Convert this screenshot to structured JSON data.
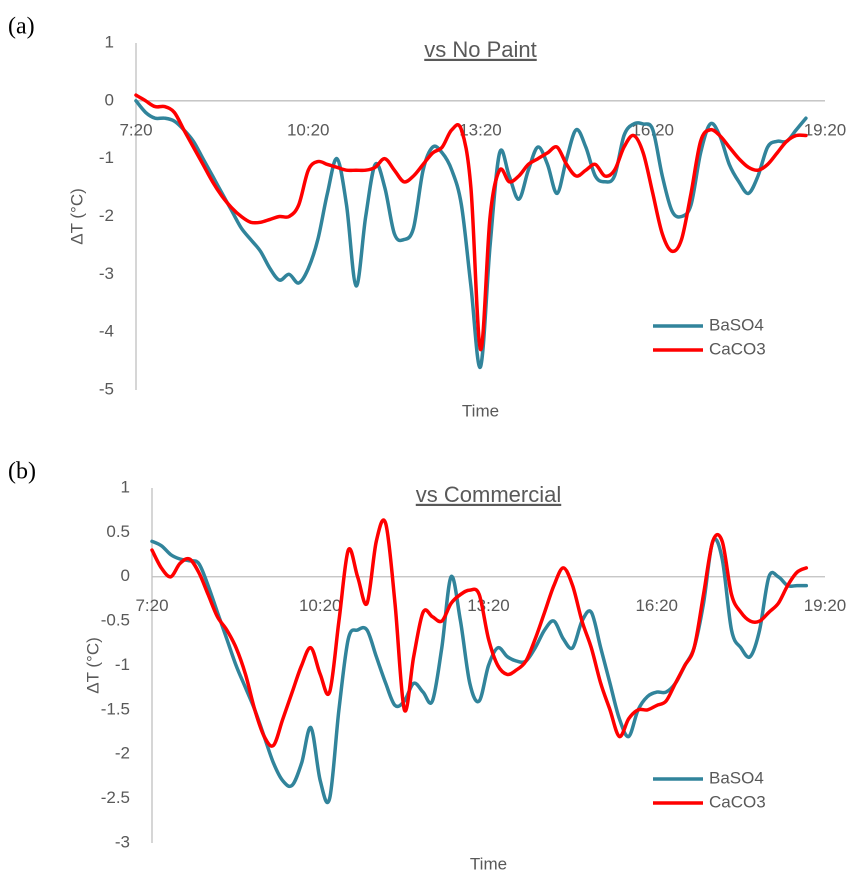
{
  "chart_data": [
    {
      "type": "line",
      "panel_label": "(a)",
      "title": "vs No Paint",
      "xlabel": "Time",
      "ylabel": "ΔT (°C)",
      "smooth": true,
      "legend": "lower right",
      "x": [
        440,
        450,
        460,
        470,
        480,
        490,
        500,
        510,
        520,
        530,
        540,
        550,
        560,
        570,
        580,
        590,
        600,
        610,
        620,
        630,
        640,
        650,
        660,
        670,
        680,
        690,
        700,
        710,
        720,
        730,
        740,
        750,
        760,
        770,
        780,
        790,
        800,
        810,
        820,
        830,
        840,
        850,
        860,
        870,
        880,
        890,
        900,
        910,
        920,
        930,
        940,
        950,
        960,
        970,
        980,
        990,
        1000,
        1010,
        1020,
        1030,
        1040,
        1050,
        1060,
        1070,
        1080,
        1090,
        1100,
        1110,
        1120,
        1130,
        1140
      ],
      "xlim": [
        440,
        1160
      ],
      "xticks": [
        {
          "value": 440,
          "label": "7:20"
        },
        {
          "value": 620,
          "label": "10:20"
        },
        {
          "value": 800,
          "label": "13:20"
        },
        {
          "value": 980,
          "label": "16:20"
        },
        {
          "value": 1160,
          "label": "19:20"
        }
      ],
      "ylim": [
        -5,
        1
      ],
      "yticks": [
        -5,
        -4,
        -3,
        -2,
        -1,
        0,
        1
      ],
      "series": [
        {
          "name": "BaSO4",
          "color": "#31849b",
          "values": [
            0.0,
            -0.2,
            -0.3,
            -0.3,
            -0.35,
            -0.5,
            -0.7,
            -1.0,
            -1.3,
            -1.6,
            -1.9,
            -2.2,
            -2.4,
            -2.6,
            -2.9,
            -3.1,
            -3.0,
            -3.15,
            -2.9,
            -2.4,
            -1.6,
            -1.0,
            -1.8,
            -3.2,
            -2.0,
            -1.1,
            -1.5,
            -2.3,
            -2.4,
            -2.2,
            -1.2,
            -0.8,
            -0.9,
            -1.2,
            -1.8,
            -3.2,
            -4.6,
            -2.5,
            -0.9,
            -1.3,
            -1.7,
            -1.2,
            -0.8,
            -1.1,
            -1.6,
            -1.0,
            -0.5,
            -0.8,
            -1.3,
            -1.4,
            -1.3,
            -0.6,
            -0.4,
            -0.4,
            -0.5,
            -1.3,
            -1.9,
            -2.0,
            -1.8,
            -0.9,
            -0.4,
            -0.6,
            -1.1,
            -1.4,
            -1.6,
            -1.3,
            -0.8,
            -0.7,
            -0.7,
            -0.5,
            -0.3
          ]
        },
        {
          "name": "CaCO3",
          "color": "#ff0000",
          "values": [
            0.1,
            0.0,
            -0.1,
            -0.1,
            -0.2,
            -0.5,
            -0.8,
            -1.1,
            -1.4,
            -1.65,
            -1.85,
            -2.0,
            -2.1,
            -2.1,
            -2.05,
            -2.0,
            -2.0,
            -1.8,
            -1.2,
            -1.05,
            -1.1,
            -1.15,
            -1.2,
            -1.2,
            -1.2,
            -1.15,
            -1.0,
            -1.2,
            -1.4,
            -1.3,
            -1.1,
            -0.9,
            -0.8,
            -0.5,
            -0.5,
            -1.5,
            -4.3,
            -2.0,
            -1.2,
            -1.4,
            -1.3,
            -1.1,
            -1.0,
            -0.9,
            -0.8,
            -1.1,
            -1.3,
            -1.2,
            -1.1,
            -1.3,
            -1.2,
            -0.8,
            -0.6,
            -0.9,
            -1.6,
            -2.3,
            -2.6,
            -2.4,
            -1.6,
            -0.7,
            -0.5,
            -0.6,
            -0.8,
            -1.0,
            -1.15,
            -1.2,
            -1.1,
            -0.9,
            -0.7,
            -0.6,
            -0.6
          ]
        }
      ]
    },
    {
      "type": "line",
      "panel_label": "(b)",
      "title": "vs Commercial",
      "xlabel": "Time",
      "ylabel": "ΔT (°C)",
      "smooth": true,
      "legend": "lower right",
      "x": [
        440,
        450,
        460,
        470,
        480,
        490,
        500,
        510,
        520,
        530,
        540,
        550,
        560,
        570,
        580,
        590,
        600,
        610,
        620,
        630,
        640,
        650,
        660,
        670,
        680,
        690,
        700,
        710,
        720,
        730,
        740,
        750,
        760,
        770,
        780,
        790,
        800,
        810,
        820,
        830,
        840,
        850,
        860,
        870,
        880,
        890,
        900,
        910,
        920,
        930,
        940,
        950,
        960,
        970,
        980,
        990,
        1000,
        1010,
        1020,
        1030,
        1040,
        1050,
        1060,
        1070,
        1080,
        1090,
        1100,
        1110,
        1120,
        1130,
        1140
      ],
      "xlim": [
        440,
        1160
      ],
      "xticks": [
        {
          "value": 440,
          "label": "7:20"
        },
        {
          "value": 620,
          "label": "10:20"
        },
        {
          "value": 800,
          "label": "13:20"
        },
        {
          "value": 980,
          "label": "16:20"
        },
        {
          "value": 1160,
          "label": "19:20"
        }
      ],
      "ylim": [
        -3,
        1
      ],
      "yticks": [
        -3,
        -2.5,
        -2,
        -1.5,
        -1,
        -0.5,
        0,
        0.5,
        1
      ],
      "series": [
        {
          "name": "BaSO4",
          "color": "#31849b",
          "values": [
            0.4,
            0.35,
            0.25,
            0.2,
            0.18,
            0.15,
            -0.1,
            -0.4,
            -0.7,
            -1.0,
            -1.25,
            -1.5,
            -1.8,
            -2.1,
            -2.3,
            -2.35,
            -2.1,
            -1.7,
            -2.3,
            -2.5,
            -1.5,
            -0.7,
            -0.6,
            -0.6,
            -0.9,
            -1.2,
            -1.45,
            -1.4,
            -1.2,
            -1.3,
            -1.4,
            -0.8,
            0.0,
            -0.5,
            -1.2,
            -1.4,
            -1.0,
            -0.8,
            -0.9,
            -0.95,
            -0.95,
            -0.8,
            -0.6,
            -0.5,
            -0.7,
            -0.8,
            -0.5,
            -0.4,
            -0.8,
            -1.2,
            -1.6,
            -1.8,
            -1.5,
            -1.35,
            -1.3,
            -1.3,
            -1.2,
            -1.0,
            -0.8,
            -0.3,
            0.4,
            0.2,
            -0.6,
            -0.8,
            -0.9,
            -0.6,
            0.0,
            0.0,
            -0.1,
            -0.1,
            -0.1
          ]
        },
        {
          "name": "CaCO3",
          "color": "#ff0000",
          "values": [
            0.3,
            0.1,
            0.0,
            0.15,
            0.2,
            0.05,
            -0.2,
            -0.45,
            -0.6,
            -0.8,
            -1.1,
            -1.5,
            -1.8,
            -1.9,
            -1.6,
            -1.3,
            -1.0,
            -0.8,
            -1.1,
            -1.3,
            -0.5,
            0.3,
            0.0,
            -0.3,
            0.4,
            0.6,
            -0.3,
            -1.5,
            -0.9,
            -0.4,
            -0.45,
            -0.5,
            -0.3,
            -0.2,
            -0.15,
            -0.2,
            -0.7,
            -1.0,
            -1.1,
            -1.05,
            -0.95,
            -0.7,
            -0.4,
            -0.1,
            0.1,
            -0.1,
            -0.5,
            -0.8,
            -1.2,
            -1.5,
            -1.8,
            -1.6,
            -1.5,
            -1.5,
            -1.45,
            -1.4,
            -1.2,
            -1.0,
            -0.8,
            -0.2,
            0.4,
            0.4,
            -0.2,
            -0.4,
            -0.5,
            -0.5,
            -0.4,
            -0.3,
            -0.1,
            0.05,
            0.1
          ]
        }
      ]
    }
  ]
}
